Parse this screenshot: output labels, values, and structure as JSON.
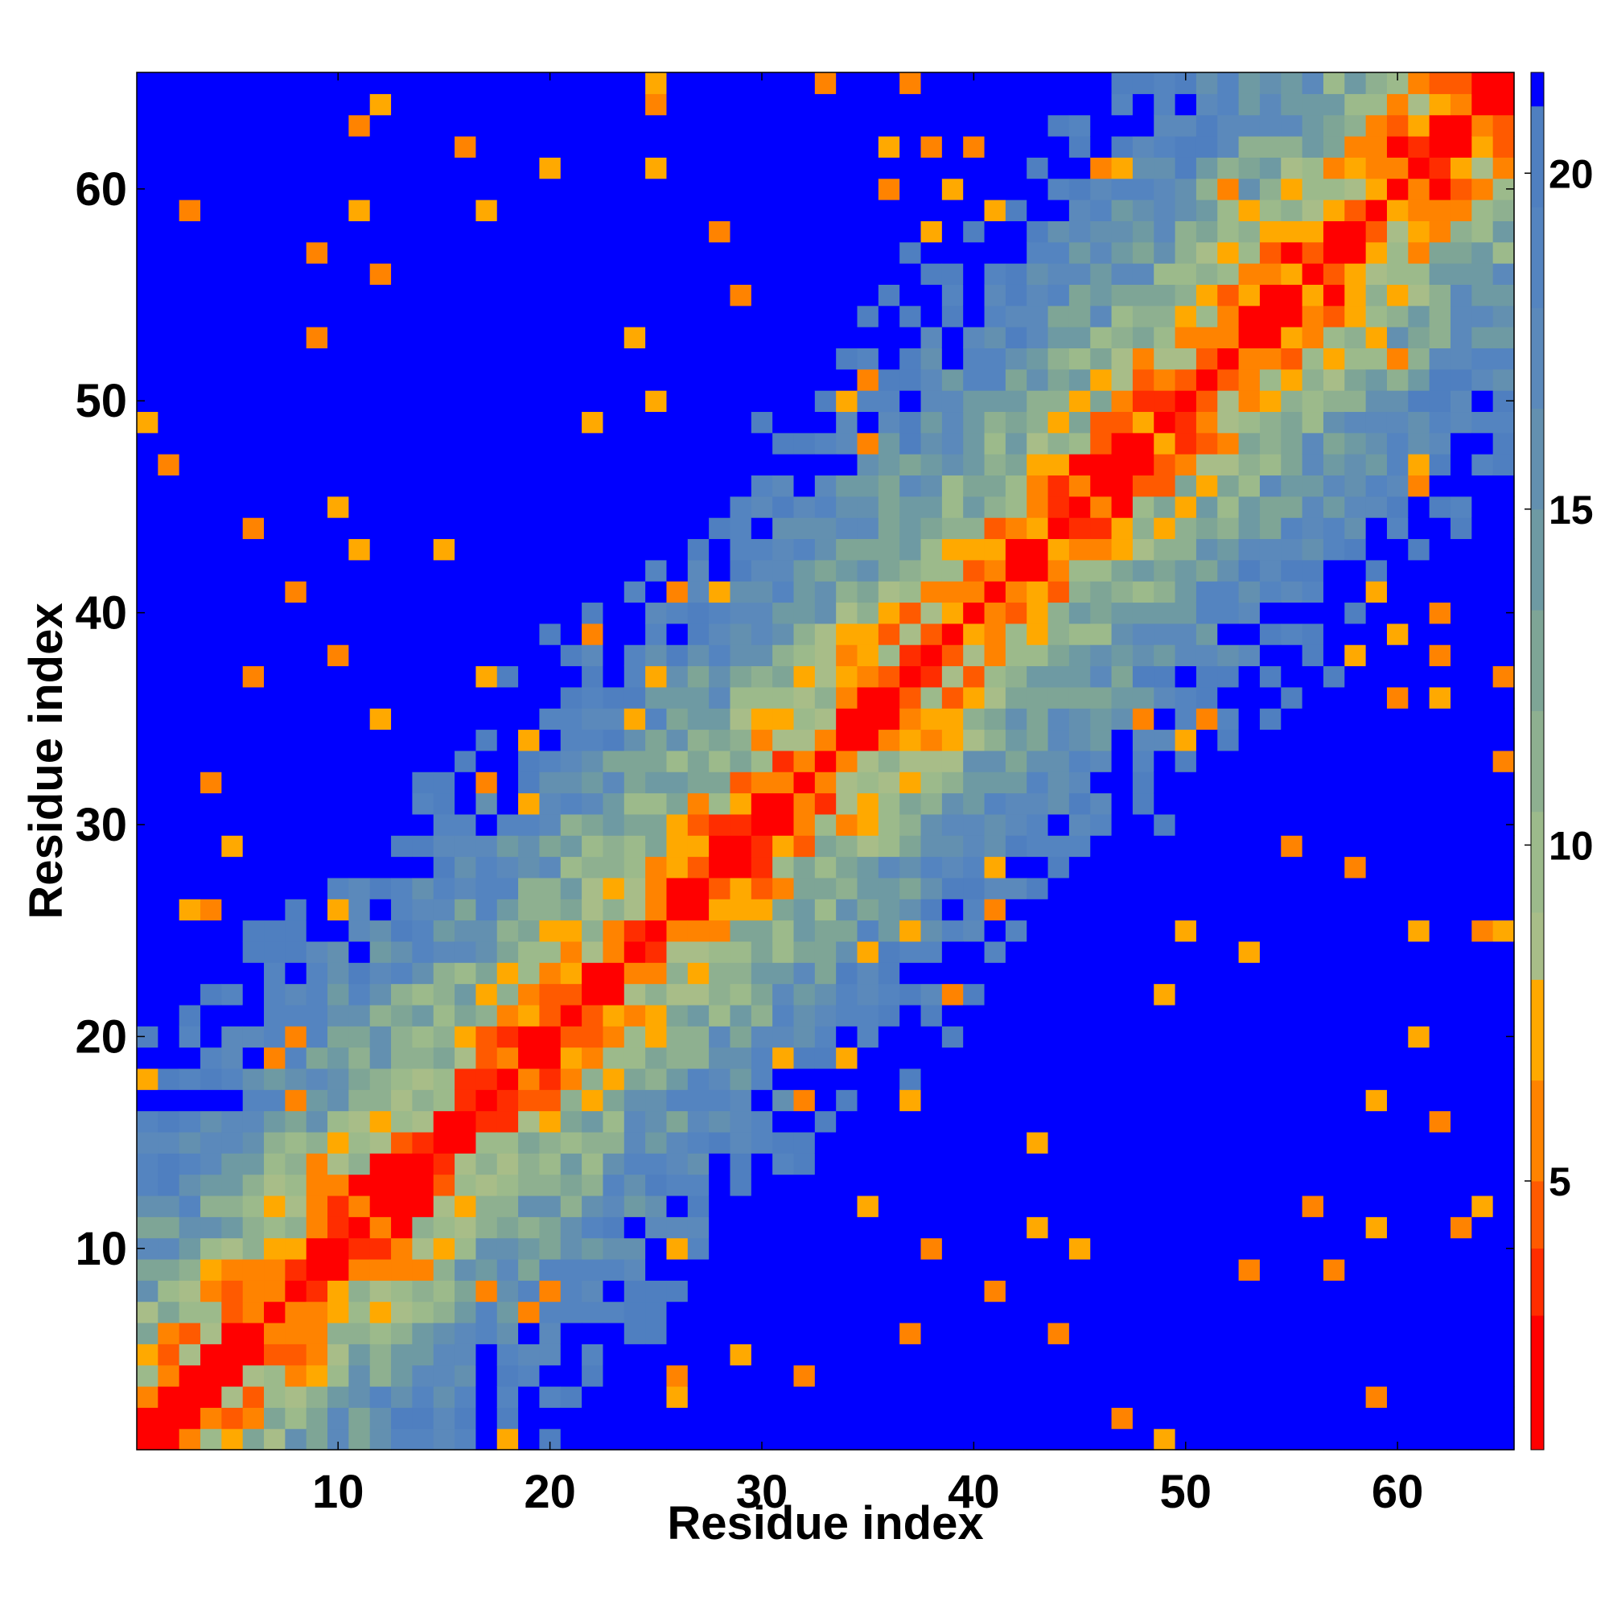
{
  "chart_data": {
    "type": "heatmap",
    "title": "",
    "xlabel": "Residue index",
    "ylabel": "Residue index",
    "n": 65,
    "xlim": [
      0.5,
      65.5
    ],
    "ylim": [
      0.5,
      65.5
    ],
    "x_ticks": [
      10,
      20,
      30,
      40,
      50,
      60
    ],
    "y_ticks": [
      10,
      20,
      30,
      40,
      50,
      60
    ],
    "x_tick_labels": [
      "10",
      "20",
      "30",
      "40",
      "50",
      "60"
    ],
    "y_tick_labels": [
      "10",
      "20",
      "30",
      "40",
      "50",
      "60"
    ],
    "colorbar": {
      "range": [
        1.0,
        21.5
      ],
      "ticks": [
        5,
        10,
        15,
        20
      ],
      "tick_labels": [
        "5",
        "10",
        "15",
        "20"
      ],
      "bins": [
        {
          "to": 3.0,
          "color": "#ff0000"
        },
        {
          "to": 4.0,
          "color": "#ff2d00"
        },
        {
          "to": 5.0,
          "color": "#ff5a00"
        },
        {
          "to": 6.5,
          "color": "#ff8300"
        },
        {
          "to": 8.0,
          "color": "#ffa900"
        },
        {
          "to": 9.0,
          "color": "#a8bd88"
        },
        {
          "to": 10.5,
          "color": "#9cba8b"
        },
        {
          "to": 12.0,
          "color": "#8eb090"
        },
        {
          "to": 13.5,
          "color": "#7ea596"
        },
        {
          "to": 15.0,
          "color": "#6e9aa3"
        },
        {
          "to": 16.5,
          "color": "#6390b0"
        },
        {
          "to": 18.0,
          "color": "#5b89bb"
        },
        {
          "to": 19.5,
          "color": "#5484c0"
        },
        {
          "to": 21.0,
          "color": "#4f7fc0"
        },
        {
          "to": 99,
          "color": "#0000ff"
        }
      ]
    },
    "value_model": {
      "description_in_data_units": "d(i,j) = 3.8 * |i-j|^0.62 ; d >= 20 rendered saturated blue",
      "sample_rows": [
        {
          "i": 1,
          "values_at_j": {
            "1": 0,
            "2": 2.5,
            "5": 6.5,
            "10": 15,
            "20": 22,
            "40": 22,
            "65": 22
          }
        },
        {
          "i": 20,
          "values_at_j": {
            "18": 4,
            "22": 4,
            "25": 7.5,
            "30": 13,
            "40": 22,
            "60": 22
          }
        },
        {
          "i": 40,
          "values_at_j": {
            "38": 4,
            "42": 4,
            "45": 6.5,
            "50": 13,
            "20": 22,
            "60": 22
          }
        }
      ]
    }
  }
}
